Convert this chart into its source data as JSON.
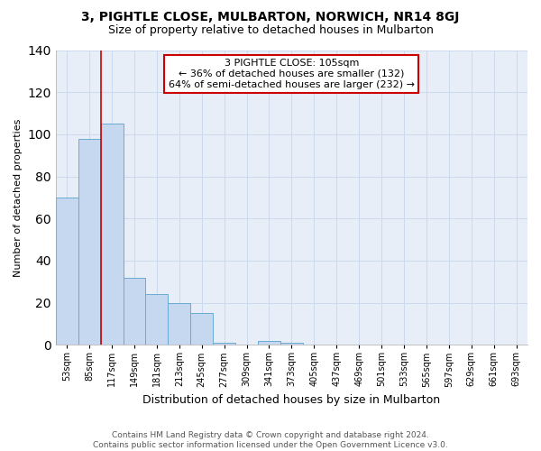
{
  "title": "3, PIGHTLE CLOSE, MULBARTON, NORWICH, NR14 8GJ",
  "subtitle": "Size of property relative to detached houses in Mulbarton",
  "xlabel": "Distribution of detached houses by size in Mulbarton",
  "ylabel": "Number of detached properties",
  "footer_line1": "Contains HM Land Registry data © Crown copyright and database right 2024.",
  "footer_line2": "Contains public sector information licensed under the Open Government Licence v3.0.",
  "categories": [
    "53sqm",
    "85sqm",
    "117sqm",
    "149sqm",
    "181sqm",
    "213sqm",
    "245sqm",
    "277sqm",
    "309sqm",
    "341sqm",
    "373sqm",
    "405sqm",
    "437sqm",
    "469sqm",
    "501sqm",
    "533sqm",
    "565sqm",
    "597sqm",
    "629sqm",
    "661sqm",
    "693sqm"
  ],
  "values": [
    70,
    98,
    105,
    32,
    24,
    20,
    15,
    1,
    0,
    2,
    1,
    0,
    0,
    0,
    0,
    0,
    0,
    0,
    0,
    0,
    0
  ],
  "bar_color": "#c5d8f0",
  "bar_edge_color": "#6aaad4",
  "property_line_value_idx": 2,
  "property_line_color": "#cc0000",
  "annotation_line1": "3 PIGHTLE CLOSE: 105sqm",
  "annotation_line2": "← 36% of detached houses are smaller (132)",
  "annotation_line3": "64% of semi-detached houses are larger (232) →",
  "annotation_box_edgecolor": "#cc0000",
  "ylim": [
    0,
    140
  ],
  "yticks": [
    0,
    20,
    40,
    60,
    80,
    100,
    120,
    140
  ],
  "grid_color": "#ccd8ec",
  "background_color": "#e8eef8",
  "title_fontsize": 10,
  "subtitle_fontsize": 9,
  "ylabel_fontsize": 8,
  "xlabel_fontsize": 9,
  "tick_fontsize": 7,
  "annotation_fontsize": 8,
  "footer_fontsize": 6.5
}
